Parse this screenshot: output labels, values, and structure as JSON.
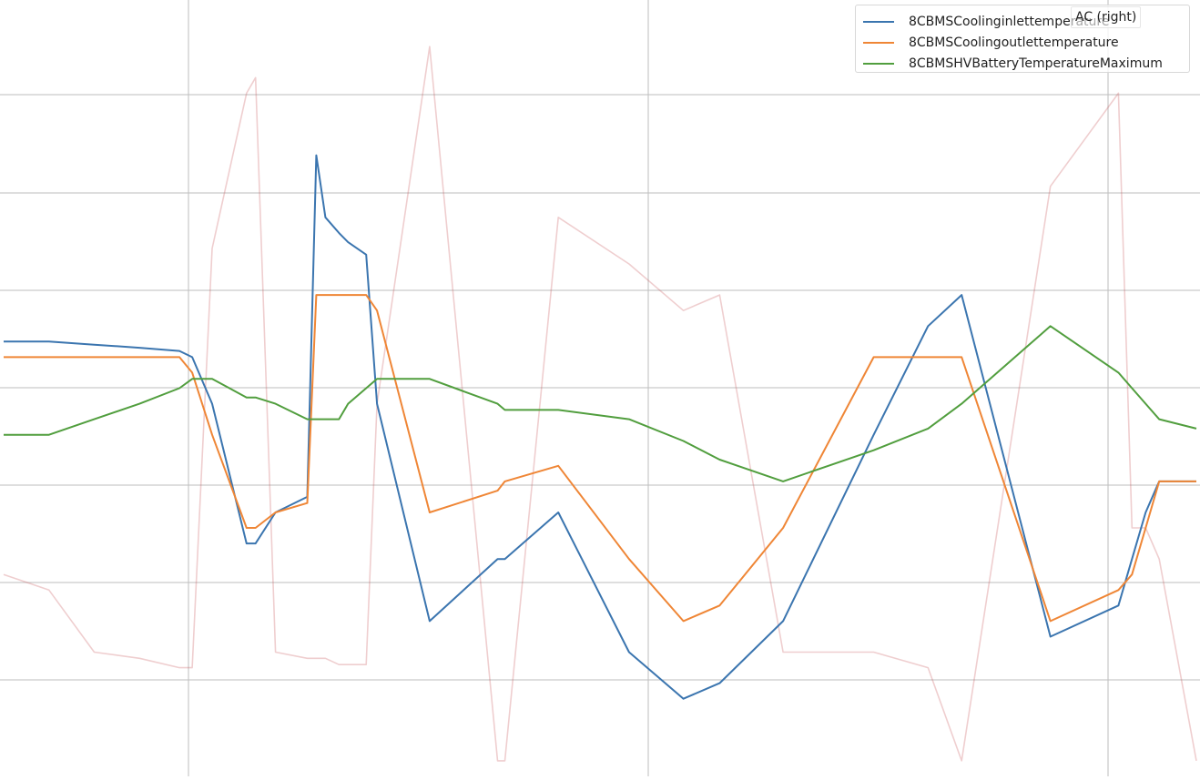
{
  "chart_data": {
    "type": "line",
    "grid": true,
    "legend_position": "top-right",
    "x": [
      0,
      50,
      100,
      150,
      194,
      208,
      230,
      268,
      278,
      300,
      335,
      345,
      355,
      370,
      380,
      400,
      412,
      470,
      545,
      553,
      612,
      690,
      750,
      790,
      860,
      960,
      1020,
      1057,
      1155,
      1230,
      1245,
      1260,
      1275,
      1316
    ],
    "series": [
      {
        "name": "8CBMSCoolinginlettemperature",
        "color": "#3b75af",
        "values": [
          0.4,
          0.4,
          0.39,
          0.38,
          0.37,
          0.35,
          0.2,
          -0.25,
          -0.25,
          -0.15,
          -0.1,
          1.0,
          0.8,
          0.75,
          0.72,
          0.68,
          0.2,
          -0.5,
          -0.3,
          -0.3,
          -0.15,
          -0.6,
          -0.75,
          -0.7,
          -0.5,
          0.1,
          0.45,
          0.55,
          -0.55,
          -0.45,
          -0.3,
          -0.15,
          -0.05,
          -0.05
        ]
      },
      {
        "name": "8CBMSCoolingoutlettemperature",
        "color": "#ef8636",
        "values": [
          0.35,
          0.35,
          0.35,
          0.35,
          0.35,
          0.3,
          0.1,
          -0.2,
          -0.2,
          -0.15,
          -0.12,
          0.55,
          0.55,
          0.55,
          0.55,
          0.55,
          0.5,
          -0.15,
          -0.08,
          -0.05,
          0.0,
          -0.3,
          -0.5,
          -0.45,
          -0.2,
          0.35,
          0.35,
          0.35,
          -0.5,
          -0.4,
          -0.35,
          -0.2,
          -0.05,
          -0.05
        ]
      },
      {
        "name": "8CBMSHVBatteryTemperatureMaximum",
        "color": "#519e3e",
        "values": [
          0.1,
          0.1,
          0.15,
          0.2,
          0.25,
          0.28,
          0.28,
          0.22,
          0.22,
          0.2,
          0.15,
          0.15,
          0.15,
          0.15,
          0.2,
          0.25,
          0.28,
          0.28,
          0.2,
          0.18,
          0.18,
          0.15,
          0.08,
          0.02,
          -0.05,
          0.05,
          0.12,
          0.2,
          0.45,
          0.3,
          0.25,
          0.2,
          0.15,
          0.12
        ]
      },
      {
        "name": "AC (right)",
        "color": "#c44e52",
        "axis": "right",
        "values": [
          -0.35,
          -0.4,
          -0.6,
          -0.62,
          -0.65,
          -0.65,
          0.7,
          1.2,
          1.25,
          -0.6,
          -0.62,
          -0.62,
          -0.62,
          -0.64,
          -0.64,
          -0.64,
          0.2,
          1.35,
          -0.95,
          -0.95,
          0.8,
          0.65,
          0.5,
          0.55,
          -0.6,
          -0.6,
          -0.65,
          -0.95,
          0.9,
          1.2,
          -0.2,
          -0.2,
          -0.3,
          -0.95
        ]
      }
    ],
    "ylim": [
      -1.0,
      1.5
    ]
  },
  "legend": {
    "items": [
      {
        "label": "8CBMSCoolinginlettemperature",
        "color": "#3b75af"
      },
      {
        "label": "8CBMSCoolingoutlettemperature",
        "color": "#ef8636"
      },
      {
        "label": "8CBMSHVBatteryTemperatureMaximum",
        "color": "#519e3e"
      }
    ],
    "right_label": "AC (right)",
    "right_color": "#f0c9c9"
  }
}
